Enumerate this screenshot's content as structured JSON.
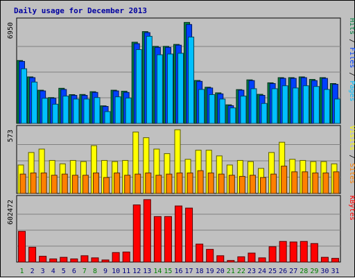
{
  "chart_data": {
    "type": "bar",
    "title": "Daily usage for December 2013",
    "categories": [
      "1",
      "2",
      "3",
      "4",
      "5",
      "6",
      "7",
      "8",
      "9",
      "10",
      "11",
      "12",
      "13",
      "14",
      "15",
      "16",
      "17",
      "18",
      "19",
      "20",
      "21",
      "22",
      "23",
      "24",
      "25",
      "26",
      "27",
      "28",
      "29",
      "30",
      "31"
    ],
    "weekend_days": [
      1,
      7,
      8,
      14,
      15,
      21,
      22,
      28,
      29
    ],
    "panels": [
      {
        "id": "top",
        "max_label": "6950",
        "ymax": 6950,
        "legend": [
          {
            "text": "Pages",
            "color": "#00c0ff"
          },
          {
            "text": "Files",
            "color": "#0040ff"
          },
          {
            "text": "Hits",
            "color": "#008040"
          }
        ],
        "series": [
          {
            "name": "Hits",
            "color": "#008040",
            "values": [
              4260,
              3150,
              2250,
              1750,
              2380,
              1950,
              1960,
              2150,
              1190,
              2250,
              2180,
              5500,
              6220,
              5220,
              5220,
              5350,
              6840,
              2910,
              2450,
              2070,
              1260,
              2290,
              2950,
              1970,
              2750,
              3100,
              3100,
              3150,
              2980,
              3100,
              2700
            ]
          },
          {
            "name": "Files",
            "color": "#0040ff",
            "values": [
              4200,
              3100,
              2200,
              1700,
              2300,
              1900,
              1900,
              2100,
              1150,
              2200,
              2100,
              5400,
              6150,
              5150,
              5150,
              5300,
              6700,
              2850,
              2400,
              2000,
              1200,
              2250,
              2900,
              1900,
              2700,
              3050,
              3050,
              3100,
              2900,
              3050,
              2650
            ]
          },
          {
            "name": "Pages",
            "color": "#00c0ff",
            "values": [
              3700,
              2800,
              1700,
              1300,
              1850,
              1650,
              1650,
              1750,
              800,
              1800,
              1720,
              5000,
              5900,
              4650,
              4700,
              4750,
              5850,
              2300,
              1950,
              1650,
              1050,
              1850,
              2350,
              1350,
              2350,
              2550,
              2400,
              2550,
              2500,
              2300,
              1650
            ]
          }
        ]
      },
      {
        "id": "middle",
        "max_label": "573",
        "ymax": 573,
        "legend": [
          {
            "text": "Sites",
            "color": "#ff8000"
          },
          {
            "text": "Visits",
            "color": "#ffff00"
          }
        ],
        "series": [
          {
            "name": "Visits",
            "color": "#ffff00",
            "values": [
              250,
              360,
              390,
              290,
              260,
              290,
              280,
              420,
              290,
              280,
              290,
              540,
              490,
              390,
              350,
              560,
              300,
              380,
              380,
              330,
              250,
              290,
              280,
              220,
              360,
              450,
              300,
              290,
              280,
              280,
              260
            ]
          },
          {
            "name": "Sites",
            "color": "#ff8000",
            "values": [
              170,
              180,
              180,
              160,
              170,
              160,
              160,
              180,
              140,
              180,
              160,
              170,
              180,
              160,
              170,
              180,
              180,
              200,
              180,
              170,
              160,
              150,
              160,
              140,
              170,
              240,
              190,
              190,
              180,
              180,
              190
            ]
          }
        ]
      },
      {
        "id": "bottom",
        "max_label": "602472",
        "ymax": 602472,
        "legend": [
          {
            "text": "KBytes",
            "color": "#ff0000"
          }
        ],
        "series": [
          {
            "name": "KBytes",
            "color": "#ff0000",
            "values": [
              290000,
              140000,
              55000,
              30000,
              45000,
              30000,
              60000,
              40000,
              20000,
              90000,
              95000,
              540000,
              590000,
              430000,
              430000,
              530000,
              510000,
              170000,
              120000,
              60000,
              15000,
              50000,
              85000,
              40000,
              145000,
              195000,
              190000,
              195000,
              175000,
              45000,
              35000
            ]
          }
        ]
      }
    ]
  }
}
